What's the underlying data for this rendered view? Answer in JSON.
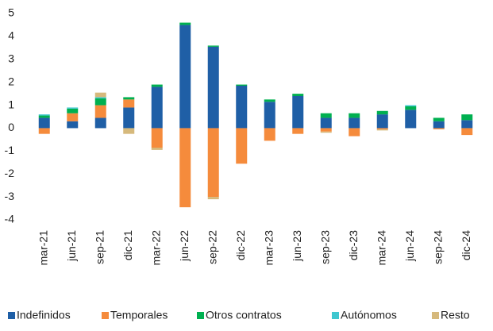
{
  "chart_data": {
    "type": "stacked_bar",
    "categories": [
      "mar-21",
      "jun-21",
      "sep-21",
      "dic-21",
      "mar-22",
      "jun-22",
      "sep-22",
      "dic-22",
      "mar-23",
      "jun-23",
      "sep-23",
      "dic-23",
      "mar-24",
      "jun-24",
      "sep-24",
      "dic-24"
    ],
    "series": [
      {
        "name": "Indefinidos",
        "color": "#1f5fa6",
        "values": [
          0.45,
          0.3,
          0.45,
          0.9,
          1.8,
          4.5,
          3.55,
          1.85,
          1.15,
          1.4,
          0.45,
          0.45,
          0.6,
          0.8,
          0.3,
          0.35
        ]
      },
      {
        "name": "Temporales",
        "color": "#f58b3c",
        "values": [
          -0.25,
          0.35,
          0.55,
          0.35,
          -0.85,
          -3.45,
          -3.0,
          -1.55,
          -0.55,
          -0.25,
          -0.15,
          -0.35,
          -0.05,
          0,
          -0.05,
          -0.3
        ]
      },
      {
        "name": "Otros contratos",
        "color": "#00b050",
        "values": [
          0.1,
          0.2,
          0.3,
          0.1,
          0.1,
          0.1,
          0.05,
          0.05,
          0.1,
          0.1,
          0.2,
          0.2,
          0.15,
          0.15,
          0.15,
          0.25
        ]
      },
      {
        "name": "Autónomos",
        "color": "#3fc7cf",
        "values": [
          0.05,
          0.05,
          0.05,
          0,
          0,
          0,
          0,
          0,
          0,
          0,
          0,
          0,
          0,
          0.05,
          0,
          0
        ]
      },
      {
        "name": "Resto",
        "color": "#d6b97c",
        "values": [
          0,
          0,
          0.2,
          -0.25,
          -0.1,
          0,
          -0.1,
          0,
          0,
          0,
          -0.05,
          0,
          -0.05,
          0,
          0,
          0
        ]
      }
    ],
    "ylim": [
      -4,
      5
    ],
    "yticks": [
      -4,
      -3,
      -2,
      -1,
      0,
      1,
      2,
      3,
      4,
      5
    ],
    "grid": false
  }
}
